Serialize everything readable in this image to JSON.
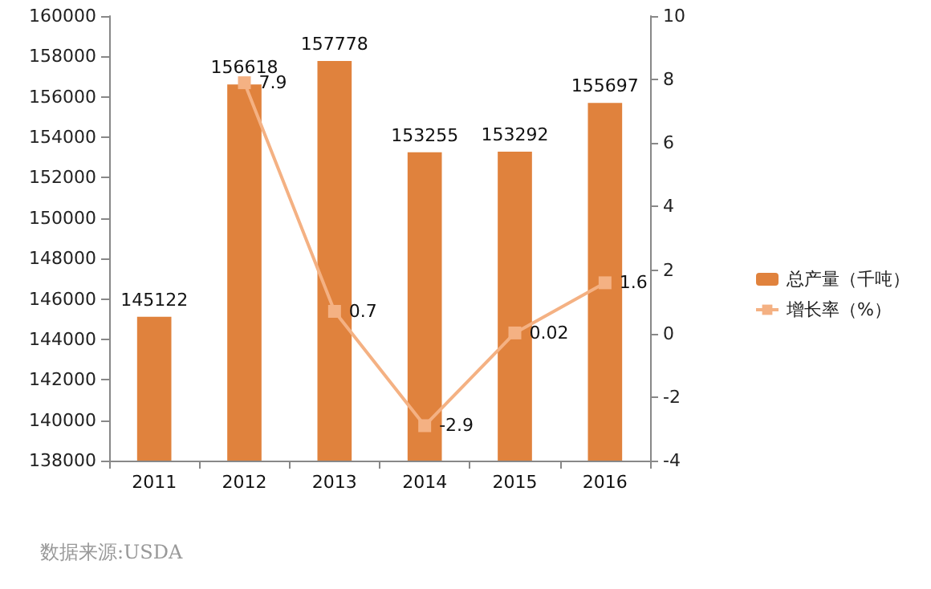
{
  "chart_data": {
    "type": "bar",
    "categories": [
      "2011",
      "2012",
      "2013",
      "2014",
      "2015",
      "2016"
    ],
    "series": [
      {
        "name": "总产量（千吨）",
        "color": "#e0823d",
        "values": [
          145122,
          156618,
          157778,
          153255,
          153292,
          155697
        ]
      },
      {
        "name": "增长率（%）",
        "type": "line",
        "axis": "y2",
        "color": "#f4b183",
        "values": [
          null,
          7.9,
          0.7,
          -2.9,
          0.02,
          1.6
        ]
      }
    ],
    "ylim": [
      138000,
      160000
    ],
    "yticks": [
      138000,
      140000,
      142000,
      144000,
      146000,
      148000,
      150000,
      152000,
      154000,
      156000,
      158000,
      160000
    ],
    "y2lim": [
      -4,
      10
    ],
    "y2ticks": [
      -4,
      -2,
      0,
      2,
      4,
      6,
      8,
      10
    ],
    "data_labels": true,
    "grid": false,
    "legend": "right",
    "marker": "square",
    "line_style": "solid",
    "annotations": [
      "数据来源:USDA"
    ]
  }
}
